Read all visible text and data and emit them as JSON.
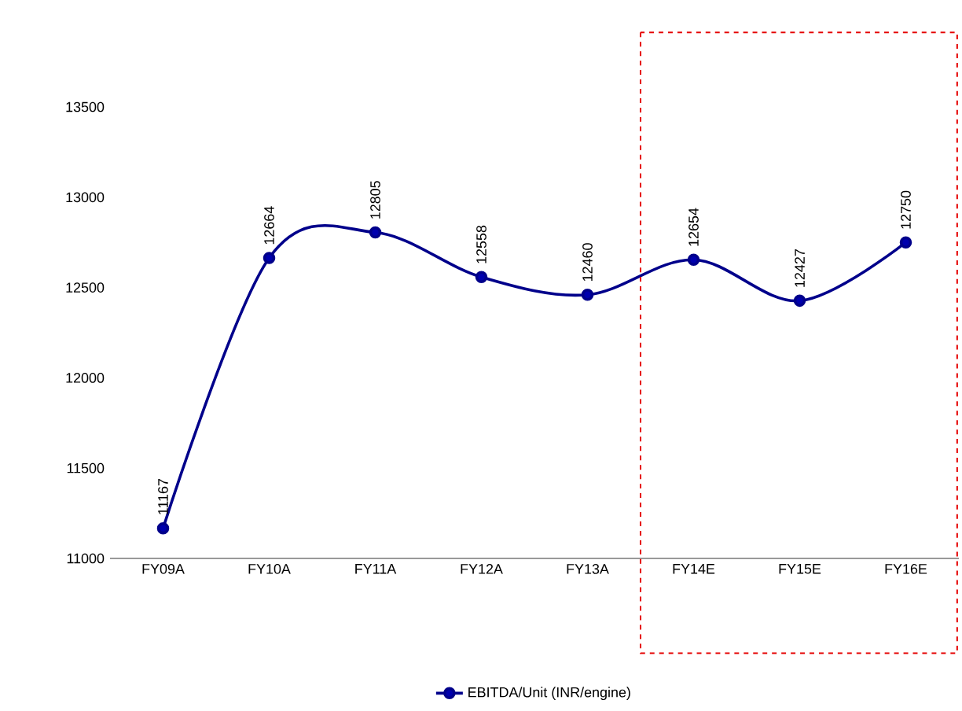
{
  "chart_data": {
    "type": "line",
    "categories": [
      "FY09A",
      "FY10A",
      "FY11A",
      "FY12A",
      "FY13A",
      "FY14E",
      "FY15E",
      "FY16E"
    ],
    "series": [
      {
        "name": "EBITDA/Unit (INR/engine)",
        "color": "#00008b",
        "values": [
          11167,
          12664,
          12805,
          12558,
          12460,
          12654,
          12427,
          12750
        ]
      }
    ],
    "ylim": [
      11000,
      13500
    ],
    "yticks": [
      11000,
      11500,
      12000,
      12500,
      13000,
      13500
    ],
    "data_labels": true,
    "marker": "circle",
    "legend": "bottom",
    "grid": false
  }
}
